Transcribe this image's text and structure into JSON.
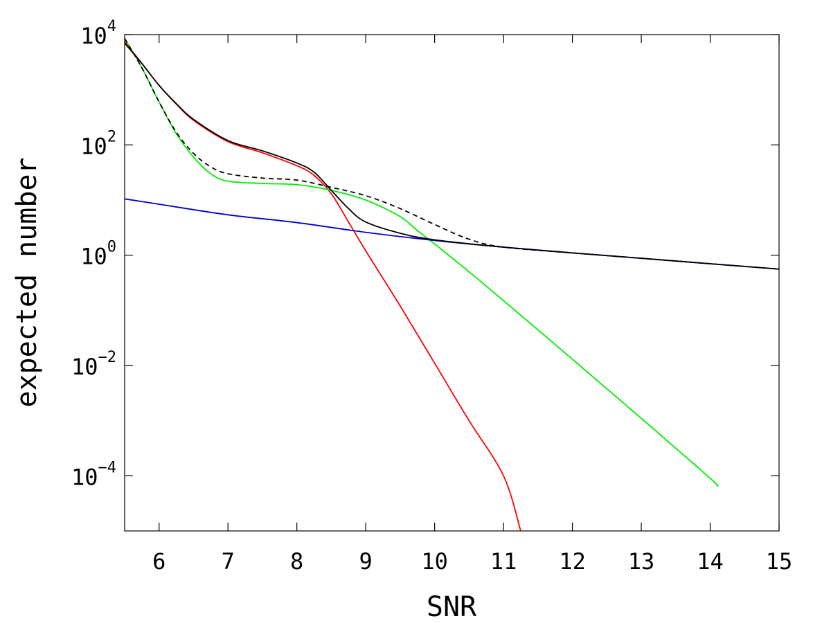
{
  "chart_data": {
    "type": "line",
    "title": "",
    "xlabel": "SNR",
    "ylabel": "expected number",
    "x_scale": "linear",
    "y_scale": "log",
    "xlim": [
      5.5,
      15
    ],
    "ylim": [
      1e-05,
      10000
    ],
    "x_ticks": [
      6,
      7,
      8,
      9,
      10,
      11,
      12,
      13,
      14,
      15
    ],
    "y_ticks": [
      {
        "base": "10",
        "exponent": "4",
        "value": 10000
      },
      {
        "base": "10",
        "exponent": "2",
        "value": 100
      },
      {
        "base": "10",
        "exponent": "0",
        "value": 1
      },
      {
        "base": "10",
        "exponent": "−2",
        "value": 0.01
      },
      {
        "base": "10",
        "exponent": "−4",
        "value": 0.0001
      }
    ],
    "grid": false,
    "legend": "none",
    "series": [
      {
        "color": "#ff0000",
        "style": "solid",
        "points": [
          [
            5.5,
            7500
          ],
          [
            5.75,
            3000
          ],
          [
            6.0,
            1200
          ],
          [
            6.25,
            550
          ],
          [
            6.5,
            280
          ],
          [
            7.0,
            115
          ],
          [
            7.5,
            72
          ],
          [
            8.0,
            42
          ],
          [
            8.25,
            28
          ],
          [
            8.5,
            13
          ],
          [
            8.75,
            4
          ],
          [
            9.0,
            1.2
          ],
          [
            9.5,
            0.12
          ],
          [
            10.0,
            0.011
          ],
          [
            10.5,
            0.001
          ],
          [
            11.0,
            0.0001
          ],
          [
            11.25,
            1e-05
          ]
        ]
      },
      {
        "color": "#00ee00",
        "style": "solid",
        "points": [
          [
            5.5,
            8500
          ],
          [
            5.75,
            2500
          ],
          [
            6.0,
            600
          ],
          [
            6.25,
            160
          ],
          [
            6.5,
            60
          ],
          [
            6.75,
            30
          ],
          [
            7.0,
            22
          ],
          [
            7.5,
            20
          ],
          [
            8.0,
            19
          ],
          [
            8.5,
            15
          ],
          [
            9.0,
            10
          ],
          [
            9.5,
            5
          ],
          [
            9.75,
            2.8
          ],
          [
            10.0,
            1.6
          ],
          [
            10.5,
            0.5
          ],
          [
            11.0,
            0.15
          ],
          [
            12.0,
            0.013
          ],
          [
            13.0,
            0.0011
          ],
          [
            14.0,
            9e-05
          ],
          [
            14.1,
            6.5e-05
          ]
        ]
      },
      {
        "color": "#0000cc",
        "style": "solid",
        "points": [
          [
            5.5,
            10.5
          ],
          [
            6.0,
            8.4
          ],
          [
            7.0,
            5.4
          ],
          [
            8.0,
            3.9
          ],
          [
            9.0,
            2.6
          ],
          [
            10.0,
            1.85
          ],
          [
            11.0,
            1.4
          ],
          [
            12.0,
            1.1
          ],
          [
            13.0,
            0.88
          ],
          [
            14.0,
            0.7
          ],
          [
            15.0,
            0.56
          ]
        ]
      },
      {
        "color": "#000000",
        "style": "solid",
        "points": [
          [
            5.5,
            7000
          ],
          [
            5.75,
            3000
          ],
          [
            6.0,
            1200
          ],
          [
            6.25,
            560
          ],
          [
            6.5,
            290
          ],
          [
            7.0,
            120
          ],
          [
            7.5,
            78
          ],
          [
            8.0,
            47
          ],
          [
            8.25,
            32
          ],
          [
            8.5,
            15
          ],
          [
            8.75,
            7
          ],
          [
            9.0,
            4
          ],
          [
            9.5,
            2.5
          ],
          [
            10.0,
            1.9
          ],
          [
            11.0,
            1.4
          ],
          [
            12.0,
            1.1
          ],
          [
            13.0,
            0.88
          ],
          [
            14.0,
            0.7
          ],
          [
            15.0,
            0.56
          ]
        ]
      },
      {
        "color": "#000000",
        "style": "dashed",
        "points": [
          [
            5.5,
            8500
          ],
          [
            5.75,
            2500
          ],
          [
            6.0,
            600
          ],
          [
            6.25,
            170
          ],
          [
            6.5,
            70
          ],
          [
            6.75,
            40
          ],
          [
            7.0,
            30
          ],
          [
            7.5,
            25
          ],
          [
            8.0,
            23
          ],
          [
            8.5,
            17
          ],
          [
            9.0,
            12
          ],
          [
            9.5,
            7
          ],
          [
            10.0,
            3.6
          ],
          [
            10.5,
            1.95
          ],
          [
            11.0,
            1.4
          ],
          [
            12.0,
            1.1
          ],
          [
            13.0,
            0.88
          ],
          [
            14.0,
            0.7
          ],
          [
            15.0,
            0.56
          ]
        ]
      }
    ]
  }
}
